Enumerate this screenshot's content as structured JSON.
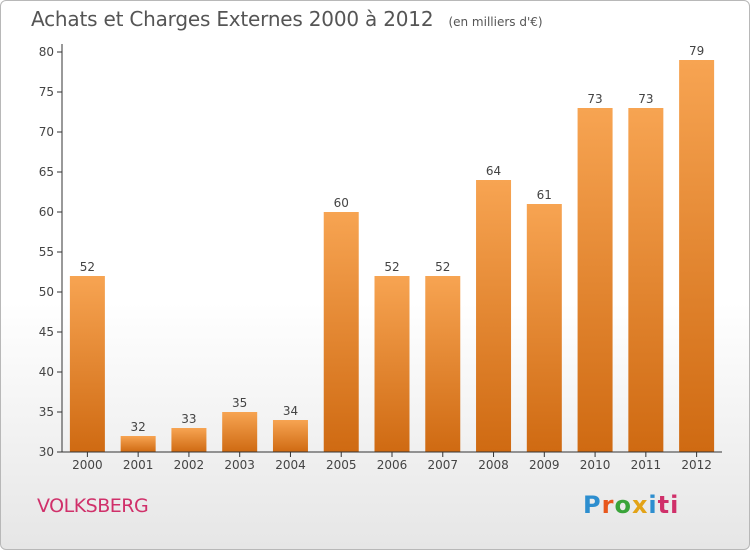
{
  "title": "Achats et Charges Externes 2000 à 2012",
  "subtitle": "(en milliers d'€)",
  "commune": "VOLKSBERG",
  "logo": {
    "text": "Proxiti",
    "letters": [
      "P",
      "r",
      "o",
      "x",
      "i",
      "ti"
    ]
  },
  "colors": {
    "bar_light": "#f7a452",
    "bar_dark": "#cf6a12",
    "axis": "#333333",
    "grid": "#dddddd",
    "commune": "#d0306a"
  },
  "chart_data": {
    "type": "bar",
    "categories": [
      "2000",
      "2001",
      "2002",
      "2003",
      "2004",
      "2005",
      "2006",
      "2007",
      "2008",
      "2009",
      "2010",
      "2011",
      "2012"
    ],
    "values": [
      52,
      32,
      33,
      35,
      34,
      60,
      52,
      52,
      64,
      61,
      73,
      73,
      79
    ],
    "title": "Achats et Charges Externes 2000 à 2012",
    "ylim": [
      30,
      80
    ],
    "yticks": [
      30,
      35,
      40,
      45,
      50,
      55,
      60,
      65,
      70,
      75,
      80
    ],
    "grid": false,
    "data_labels": true
  }
}
